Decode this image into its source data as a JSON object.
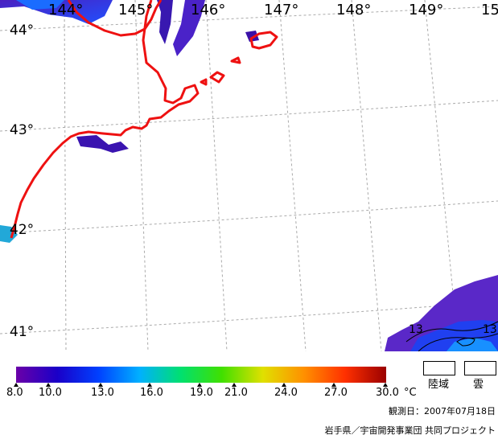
{
  "map": {
    "longitude_labels": [
      "144°",
      "145°",
      "146°",
      "147°",
      "148°",
      "149°",
      "15"
    ],
    "latitude_labels": [
      "44°",
      "43°",
      "42°",
      "41°"
    ],
    "coastline_color": "#ee1111",
    "grid_color": "#aaaaaa",
    "contour_labels": [
      "13",
      "13"
    ]
  },
  "color_scale": {
    "ticks": [
      "8.0",
      "10.0",
      "13.0",
      "16.0",
      "19.0",
      "21.0",
      "24.0",
      "27.0",
      "30.0"
    ],
    "unit": "°C",
    "gradient_stops": [
      "#6a00a8",
      "#1a00c8",
      "#0040ff",
      "#00b0ff",
      "#00e070",
      "#40e000",
      "#e0e000",
      "#ff9000",
      "#ff3000",
      "#9a0000"
    ]
  },
  "legend": {
    "land_label": "陸域",
    "cloud_label": "雲"
  },
  "footer": {
    "observation_date": "観測日：2007年07月18日",
    "credit": "岩手県／宇宙開発事業団 共同プロジェクト"
  }
}
